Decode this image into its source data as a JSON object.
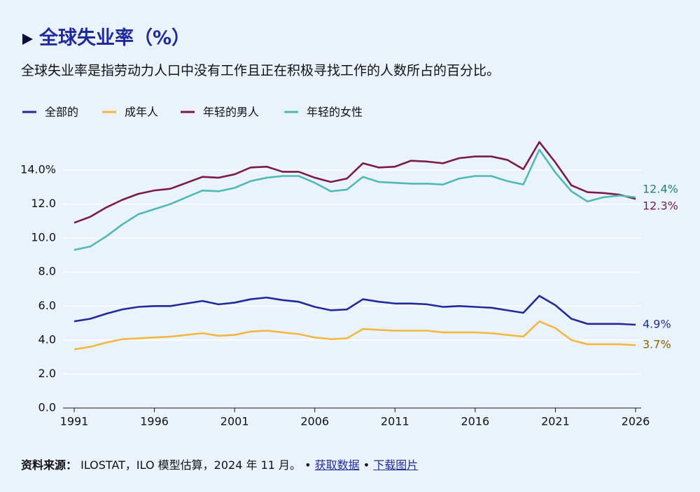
{
  "chart_data": {
    "type": "line",
    "title": "全球失业率（%）",
    "subtitle": "全球失业率是指劳动力人口中没有工作且正在积极寻找工作的人数所占的百分比。",
    "x": [
      1991,
      1992,
      1993,
      1994,
      1995,
      1996,
      1997,
      1998,
      1999,
      2000,
      2001,
      2002,
      2003,
      2004,
      2005,
      2006,
      2007,
      2008,
      2009,
      2010,
      2011,
      2012,
      2013,
      2014,
      2015,
      2016,
      2017,
      2018,
      2019,
      2020,
      2021,
      2022,
      2023,
      2024,
      2025,
      2026
    ],
    "xlim": [
      1991,
      2026
    ],
    "xticks": [
      1991,
      1996,
      2001,
      2006,
      2011,
      2016,
      2021,
      2026
    ],
    "ylim": [
      0,
      14
    ],
    "yticks": [
      {
        "value": 0,
        "label": "0.0"
      },
      {
        "value": 2,
        "label": "2.0"
      },
      {
        "value": 4,
        "label": "4.0"
      },
      {
        "value": 6,
        "label": "6.0"
      },
      {
        "value": 8,
        "label": "8.0"
      },
      {
        "value": 10,
        "label": "10.0"
      },
      {
        "value": 12,
        "label": "12.0"
      },
      {
        "value": 14,
        "label": "14.0%"
      }
    ],
    "grid": true,
    "legend": "top-left",
    "series": [
      {
        "name": "全部的",
        "color": "#1f2a9b",
        "label_color": "#1f2a9b",
        "values": [
          5.1,
          5.25,
          5.55,
          5.8,
          5.95,
          6.0,
          6.0,
          6.15,
          6.3,
          6.1,
          6.2,
          6.4,
          6.5,
          6.35,
          6.25,
          5.95,
          5.75,
          5.8,
          6.4,
          6.25,
          6.15,
          6.15,
          6.1,
          5.95,
          6.0,
          5.95,
          5.9,
          5.75,
          5.6,
          6.6,
          6.05,
          5.25,
          4.95,
          4.95,
          4.95,
          4.9
        ],
        "value_labels": [
          null,
          null,
          null,
          null,
          null,
          null,
          null,
          null,
          null,
          null,
          null,
          null,
          null,
          null,
          null,
          null,
          null,
          null,
          null,
          null,
          null,
          null,
          null,
          null,
          null,
          null,
          null,
          null,
          null,
          null,
          null,
          null,
          null,
          null,
          null,
          "4.9%"
        ]
      },
      {
        "name": "成年人",
        "color": "#f0b840",
        "label_color": "#8a6200",
        "values": [
          3.45,
          3.6,
          3.85,
          4.05,
          4.1,
          4.15,
          4.2,
          4.3,
          4.4,
          4.25,
          4.3,
          4.5,
          4.55,
          4.45,
          4.35,
          4.15,
          4.05,
          4.1,
          4.65,
          4.6,
          4.55,
          4.55,
          4.55,
          4.45,
          4.45,
          4.45,
          4.4,
          4.3,
          4.2,
          5.1,
          4.7,
          4.0,
          3.75,
          3.75,
          3.75,
          3.7
        ],
        "value_labels": [
          null,
          null,
          null,
          null,
          null,
          null,
          null,
          null,
          null,
          null,
          null,
          null,
          null,
          null,
          null,
          null,
          null,
          null,
          null,
          null,
          null,
          null,
          null,
          null,
          null,
          null,
          null,
          null,
          null,
          null,
          null,
          null,
          null,
          null,
          null,
          "3.7%"
        ]
      },
      {
        "name": "年轻的男人",
        "color": "#7b1a4a",
        "label_color": "#7b1a4a",
        "values": [
          10.9,
          11.25,
          11.8,
          12.25,
          12.6,
          12.8,
          12.9,
          13.25,
          13.6,
          13.55,
          13.75,
          14.15,
          14.2,
          13.9,
          13.9,
          13.55,
          13.3,
          13.5,
          14.4,
          14.15,
          14.2,
          14.55,
          14.5,
          14.4,
          14.7,
          14.8,
          14.8,
          14.6,
          14.05,
          15.65,
          14.45,
          13.1,
          12.7,
          12.65,
          12.55,
          12.3
        ],
        "value_labels": [
          null,
          null,
          null,
          null,
          null,
          null,
          null,
          null,
          null,
          null,
          null,
          null,
          null,
          null,
          null,
          null,
          null,
          null,
          null,
          null,
          null,
          null,
          null,
          null,
          null,
          null,
          null,
          null,
          null,
          null,
          null,
          null,
          null,
          null,
          null,
          "12.3%"
        ]
      },
      {
        "name": "年轻的女性",
        "color": "#4dbab5",
        "label_color": "#22807b",
        "values": [
          9.3,
          9.5,
          10.1,
          10.8,
          11.4,
          11.7,
          12.0,
          12.4,
          12.8,
          12.75,
          12.95,
          13.35,
          13.55,
          13.65,
          13.65,
          13.25,
          12.75,
          12.85,
          13.6,
          13.3,
          13.25,
          13.2,
          13.2,
          13.15,
          13.5,
          13.65,
          13.65,
          13.35,
          13.15,
          15.2,
          13.85,
          12.75,
          12.15,
          12.4,
          12.5,
          12.4
        ],
        "value_labels": [
          null,
          null,
          null,
          null,
          null,
          null,
          null,
          null,
          null,
          null,
          null,
          null,
          null,
          null,
          null,
          null,
          null,
          null,
          null,
          null,
          null,
          null,
          null,
          null,
          null,
          null,
          null,
          null,
          null,
          null,
          null,
          null,
          null,
          null,
          null,
          "12.4%"
        ]
      }
    ],
    "source": {
      "label": "资料来源：",
      "text": "ILOSTAT，ILO 模型估算，2024 年 11 月。",
      "separator": "•",
      "links": [
        "获取数据",
        "下载图片"
      ]
    }
  }
}
